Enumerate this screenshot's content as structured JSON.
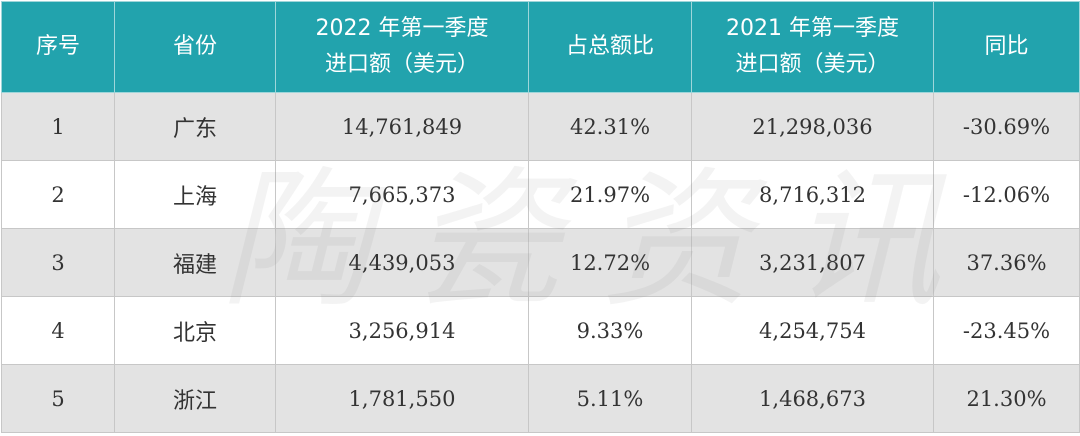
{
  "table": {
    "headers": [
      {
        "lines": [
          "序号"
        ]
      },
      {
        "lines": [
          "省份"
        ]
      },
      {
        "lines": [
          "2022 年第一季度",
          "进口额（美元）"
        ]
      },
      {
        "lines": [
          "占总额比"
        ]
      },
      {
        "lines": [
          "2021 年第一季度",
          "进口额（美元）"
        ]
      },
      {
        "lines": [
          "同比"
        ]
      }
    ],
    "rows": [
      {
        "index": "1",
        "province": "广东",
        "import_2022": "14,761,849",
        "share": "42.31%",
        "import_2021": "21,298,036",
        "yoy": "-30.69%"
      },
      {
        "index": "2",
        "province": "上海",
        "import_2022": "7,665,373",
        "share": "21.97%",
        "import_2021": "8,716,312",
        "yoy": "-12.06%"
      },
      {
        "index": "3",
        "province": "福建",
        "import_2022": "4,439,053",
        "share": "12.72%",
        "import_2021": "3,231,807",
        "yoy": "37.36%"
      },
      {
        "index": "4",
        "province": "北京",
        "import_2022": "3,256,914",
        "share": "9.33%",
        "import_2021": "4,254,754",
        "yoy": "-23.45%"
      },
      {
        "index": "5",
        "province": "浙江",
        "import_2022": "1,781,550",
        "share": "5.11%",
        "import_2021": "1,468,673",
        "yoy": "21.30%"
      }
    ]
  },
  "watermark": "陶瓷资讯",
  "colors": {
    "header_bg": "#22a3ad",
    "odd_row_bg": "#e3e3e3",
    "even_row_bg": "#ffffff"
  }
}
